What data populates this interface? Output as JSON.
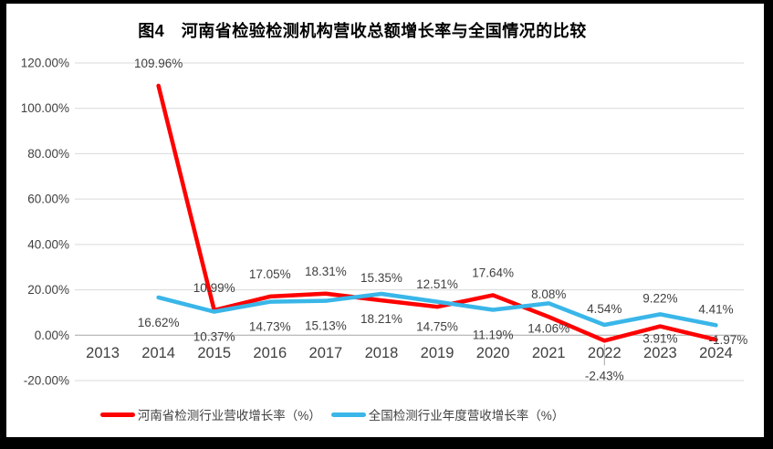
{
  "chart_data": {
    "type": "line",
    "title": "图4　河南省检验检测机构营收总额增长率与全国情况的比较",
    "categories": [
      "2013",
      "2014",
      "2015",
      "2016",
      "2017",
      "2018",
      "2019",
      "2020",
      "2021",
      "2022",
      "2023",
      "2024"
    ],
    "series": [
      {
        "name": "河南省检测行业营收增长率（%）",
        "color": "#FF0000",
        "values": [
          null,
          109.96,
          10.99,
          17.05,
          18.31,
          15.35,
          12.51,
          17.64,
          8.08,
          -2.43,
          3.91,
          -1.97
        ],
        "labels": [
          null,
          "109.96%",
          "10.99%",
          "17.05%",
          "18.31%",
          "15.35%",
          "12.51%",
          "17.64%",
          "8.08%",
          "-2.43%",
          "3.91%",
          "-1.97%"
        ],
        "label_positions": [
          null,
          "above",
          "above",
          "above",
          "above",
          "above",
          "above",
          "above",
          "above",
          "below-leader",
          "below-near",
          "right"
        ]
      },
      {
        "name": "全国检测行业年度营收增长率（%）",
        "color": "#3AB6E8",
        "values": [
          null,
          16.62,
          10.37,
          14.73,
          15.13,
          18.21,
          14.75,
          11.19,
          14.06,
          4.54,
          9.22,
          4.41
        ],
        "labels": [
          null,
          "16.62%",
          "10.37%",
          "14.73%",
          "15.13%",
          "18.21%",
          "14.75%",
          "11.19%",
          "14.06%",
          "4.54%",
          "9.22%",
          "4.41%"
        ],
        "label_positions": [
          null,
          "below",
          "below",
          "below",
          "below",
          "below",
          "below",
          "below",
          "below",
          "above-near",
          "above-near",
          "above-near"
        ]
      }
    ],
    "ylim": [
      -20,
      120
    ],
    "ytick_values": [
      120,
      100,
      80,
      60,
      40,
      20,
      0,
      -20
    ],
    "ytick_labels": [
      "120.00%",
      "100.00%",
      "80.00%",
      "60.00%",
      "40.00%",
      "20.00%",
      "0.00%",
      "-20.00%"
    ],
    "grid": true,
    "legend_position": "bottom",
    "colors": {
      "gridline": "#D9D9D9",
      "axis_line": "#A6A6A6",
      "leader_line": "#A6A6A6",
      "tick_text": "#404040",
      "label_text": "#404040",
      "title_text": "#000000"
    }
  }
}
